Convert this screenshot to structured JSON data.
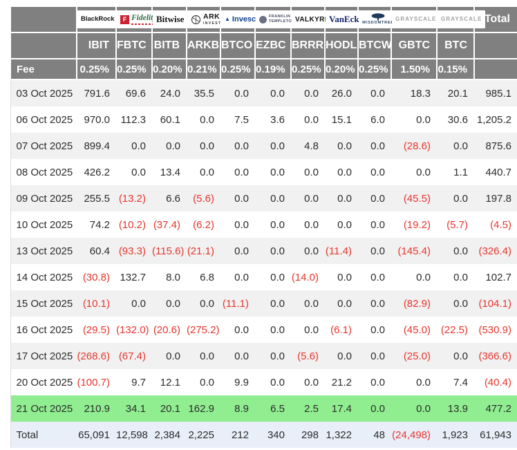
{
  "colors": {
    "header_bg": "#808080",
    "header_text": "#ffffff",
    "row_alt_bg": "#f1f1f1",
    "highlight_row_bg": "#90ee90",
    "total_row_bg": "#e9eff9",
    "negative_text": "#e8352c",
    "body_text": "#2b2b2b"
  },
  "chart_data": {
    "type": "table",
    "fee_label": "Fee",
    "total_column_label": "Total",
    "providers": [
      {
        "name": "BlackRock",
        "logo_id": "blackrock",
        "logo_text": "BlackRock",
        "ticker": "IBIT",
        "fee": "0.25%"
      },
      {
        "name": "Fidelity",
        "logo_id": "fidelity",
        "logo_icon": "F",
        "logo_text": "Fidelity",
        "ticker": "FBTC",
        "fee": "0.25%"
      },
      {
        "name": "Bitwise",
        "logo_id": "bitwise",
        "logo_text": "Bitwise",
        "ticker": "BITB",
        "fee": "0.20%"
      },
      {
        "name": "ARK Invest",
        "logo_id": "ark",
        "logo_text": "ARK",
        "logo_subtext": "INVEST",
        "ticker": "ARKB",
        "fee": "0.21%"
      },
      {
        "name": "Invesco",
        "logo_id": "invesco",
        "logo_text": "Invesco",
        "ticker": "BTCO",
        "fee": "0.25%"
      },
      {
        "name": "Franklin Templeton",
        "logo_id": "franklin",
        "logo_text": "FRANKLIN",
        "logo_subtext": "TEMPLETON",
        "ticker": "EZBC",
        "fee": "0.19%"
      },
      {
        "name": "Valkyrie",
        "logo_id": "valkyrie",
        "logo_text": "VALKYRIE",
        "ticker": "BRRR",
        "fee": "0.25%"
      },
      {
        "name": "VanEck",
        "logo_id": "vaneck",
        "logo_text": "VanEck",
        "ticker": "HODL",
        "fee": "0.20%"
      },
      {
        "name": "WisdomTree",
        "logo_id": "wisdomtree",
        "logo_text": "WISDOMTREE",
        "ticker": "BTCW",
        "fee": "0.25%"
      },
      {
        "name": "Grayscale",
        "logo_id": "grayscale",
        "logo_text": "GRAYSCALE",
        "ticker": "GBTC",
        "fee": "1.50%"
      },
      {
        "name": "Grayscale",
        "logo_id": "grayscale",
        "logo_text": "GRAYSCALE",
        "ticker": "BTC",
        "fee": "0.15%"
      }
    ],
    "rows": [
      {
        "date": "03 Oct 2025",
        "values": [
          "791.6",
          "69.6",
          "24.0",
          "35.5",
          "0.0",
          "0.0",
          "0.0",
          "26.0",
          "0.0",
          "18.3",
          "20.1"
        ],
        "total": "985.1"
      },
      {
        "date": "06 Oct 2025",
        "values": [
          "970.0",
          "112.3",
          "60.1",
          "0.0",
          "7.5",
          "3.6",
          "0.0",
          "15.1",
          "6.0",
          "0.0",
          "30.6"
        ],
        "total": "1,205.2"
      },
      {
        "date": "07 Oct 2025",
        "values": [
          "899.4",
          "0.0",
          "0.0",
          "0.0",
          "0.0",
          "0.0",
          "4.8",
          "0.0",
          "0.0",
          "(28.6)",
          "0.0"
        ],
        "total": "875.6"
      },
      {
        "date": "08 Oct 2025",
        "values": [
          "426.2",
          "0.0",
          "13.4",
          "0.0",
          "0.0",
          "0.0",
          "0.0",
          "0.0",
          "0.0",
          "0.0",
          "1.1"
        ],
        "total": "440.7"
      },
      {
        "date": "09 Oct 2025",
        "values": [
          "255.5",
          "(13.2)",
          "6.6",
          "(5.6)",
          "0.0",
          "0.0",
          "0.0",
          "0.0",
          "0.0",
          "(45.5)",
          "0.0"
        ],
        "total": "197.8"
      },
      {
        "date": "10 Oct 2025",
        "values": [
          "74.2",
          "(10.2)",
          "(37.4)",
          "(6.2)",
          "0.0",
          "0.0",
          "0.0",
          "0.0",
          "0.0",
          "(19.2)",
          "(5.7)"
        ],
        "total": "(4.5)"
      },
      {
        "date": "13 Oct 2025",
        "values": [
          "60.4",
          "(93.3)",
          "(115.6)",
          "(21.1)",
          "0.0",
          "0.0",
          "0.0",
          "(11.4)",
          "0.0",
          "(145.4)",
          "0.0"
        ],
        "total": "(326.4)"
      },
      {
        "date": "14 Oct 2025",
        "values": [
          "(30.8)",
          "132.7",
          "8.0",
          "6.8",
          "0.0",
          "0.0",
          "(14.0)",
          "0.0",
          "0.0",
          "0.0",
          "0.0"
        ],
        "total": "102.7"
      },
      {
        "date": "15 Oct 2025",
        "values": [
          "(10.1)",
          "0.0",
          "0.0",
          "0.0",
          "(11.1)",
          "0.0",
          "0.0",
          "0.0",
          "0.0",
          "(82.9)",
          "0.0"
        ],
        "total": "(104.1)"
      },
      {
        "date": "16 Oct 2025",
        "values": [
          "(29.5)",
          "(132.0)",
          "(20.6)",
          "(275.2)",
          "0.0",
          "0.0",
          "0.0",
          "(6.1)",
          "0.0",
          "(45.0)",
          "(22.5)"
        ],
        "total": "(530.9)"
      },
      {
        "date": "17 Oct 2025",
        "values": [
          "(268.6)",
          "(67.4)",
          "0.0",
          "0.0",
          "0.0",
          "0.0",
          "(5.6)",
          "0.0",
          "0.0",
          "(25.0)",
          "0.0"
        ],
        "total": "(366.6)"
      },
      {
        "date": "20 Oct 2025",
        "values": [
          "(100.7)",
          "9.7",
          "12.1",
          "0.0",
          "9.9",
          "0.0",
          "0.0",
          "21.2",
          "0.0",
          "0.0",
          "7.4"
        ],
        "total": "(40.4)"
      },
      {
        "date": "21 Oct 2025",
        "values": [
          "210.9",
          "34.1",
          "20.1",
          "162.9",
          "8.9",
          "6.5",
          "2.5",
          "17.4",
          "0.0",
          "0.0",
          "13.9"
        ],
        "total": "477.2",
        "highlight": true
      }
    ],
    "totals": {
      "label": "Total",
      "values": [
        "65,091",
        "12,598",
        "2,384",
        "2,225",
        "212",
        "340",
        "298",
        "1,322",
        "48",
        "(24,498)",
        "1,923"
      ],
      "total": "61,943"
    }
  }
}
